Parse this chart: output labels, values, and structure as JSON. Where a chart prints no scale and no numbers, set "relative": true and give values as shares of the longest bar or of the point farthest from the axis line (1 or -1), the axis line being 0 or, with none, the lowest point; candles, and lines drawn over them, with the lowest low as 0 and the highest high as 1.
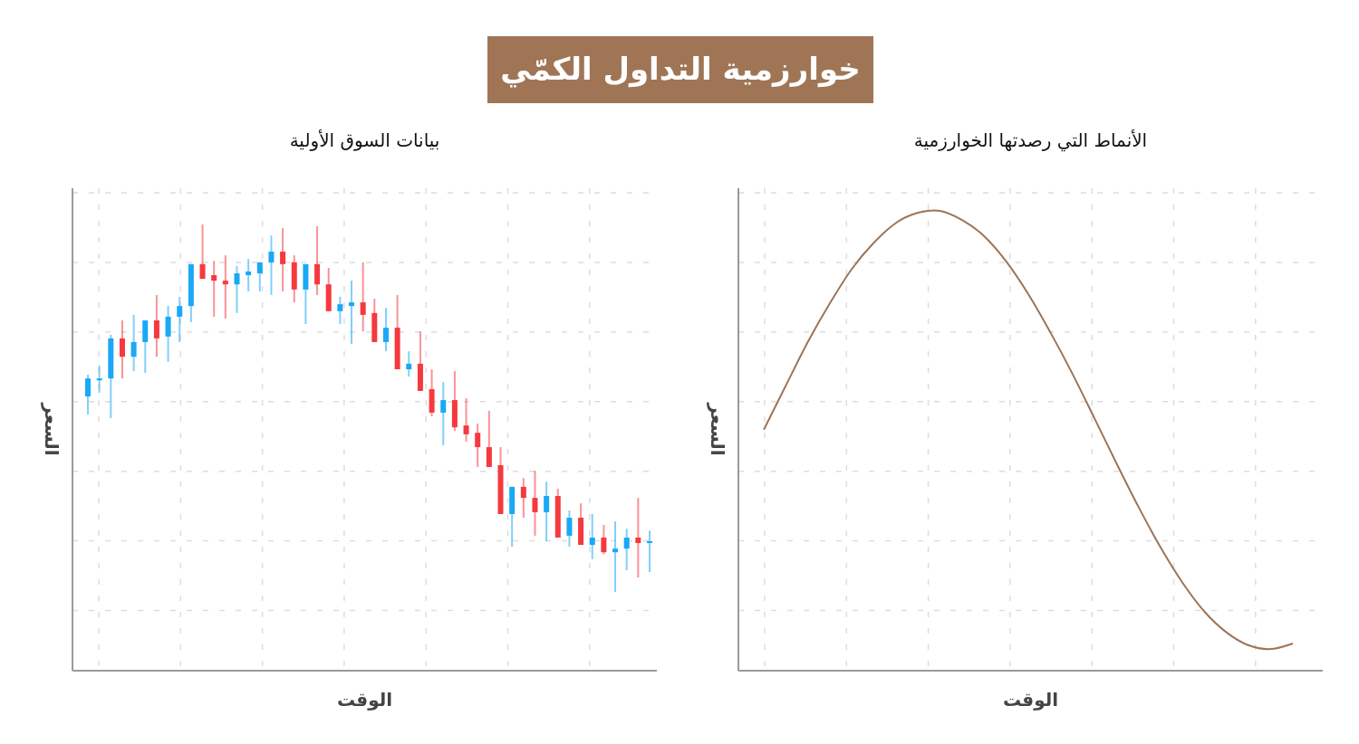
{
  "chart_data": [
    {
      "type": "other",
      "title": "خوارزمية التداول الكمّي"
    },
    {
      "type": "candlestick",
      "title": "بيانات السوق الأولية",
      "xlabel": "الوقت",
      "ylabel": "السعر",
      "relative": true,
      "grid": true,
      "categories": [
        null,
        null,
        null,
        null,
        null,
        null,
        null,
        null,
        null,
        null,
        null,
        null,
        null,
        null,
        null,
        null,
        null,
        null,
        null,
        null,
        null,
        null,
        null,
        null,
        null,
        null,
        null,
        null,
        null,
        null,
        null,
        null,
        null,
        null,
        null,
        null,
        null,
        null,
        null,
        null,
        null,
        null,
        null,
        null,
        null,
        null,
        null,
        null,
        null,
        null
      ],
      "ohlc": [
        [
          0.532,
          0.591,
          0.483,
          0.581
        ],
        [
          0.576,
          0.616,
          0.542,
          0.581
        ],
        [
          0.581,
          0.7,
          0.473,
          0.69
        ],
        [
          0.69,
          0.739,
          0.581,
          0.64
        ],
        [
          0.64,
          0.754,
          0.601,
          0.68
        ],
        [
          0.68,
          0.739,
          0.596,
          0.739
        ],
        [
          0.739,
          0.808,
          0.64,
          0.69
        ],
        [
          0.695,
          0.778,
          0.626,
          0.749
        ],
        [
          0.749,
          0.803,
          0.68,
          0.778
        ],
        [
          0.778,
          0.892,
          0.734,
          0.892
        ],
        [
          0.892,
          1.0,
          0.852,
          0.852
        ],
        [
          0.862,
          0.901,
          0.749,
          0.847
        ],
        [
          0.847,
          0.916,
          0.744,
          0.837
        ],
        [
          0.837,
          0.887,
          0.759,
          0.867
        ],
        [
          0.862,
          0.906,
          0.818,
          0.872
        ],
        [
          0.867,
          0.897,
          0.818,
          0.897
        ],
        [
          0.897,
          0.97,
          0.808,
          0.926
        ],
        [
          0.926,
          0.99,
          0.818,
          0.892
        ],
        [
          0.897,
          0.916,
          0.788,
          0.823
        ],
        [
          0.823,
          0.892,
          0.729,
          0.892
        ],
        [
          0.892,
          0.995,
          0.808,
          0.837
        ],
        [
          0.837,
          0.882,
          0.764,
          0.764
        ],
        [
          0.764,
          0.803,
          0.729,
          0.783
        ],
        [
          0.778,
          0.847,
          0.675,
          0.788
        ],
        [
          0.788,
          0.897,
          0.709,
          0.754
        ],
        [
          0.759,
          0.798,
          0.68,
          0.68
        ],
        [
          0.68,
          0.773,
          0.655,
          0.719
        ],
        [
          0.719,
          0.808,
          0.606,
          0.606
        ],
        [
          0.606,
          0.655,
          0.586,
          0.621
        ],
        [
          0.621,
          0.709,
          0.547,
          0.547
        ],
        [
          0.552,
          0.606,
          0.478,
          0.488
        ],
        [
          0.488,
          0.571,
          0.399,
          0.522
        ],
        [
          0.522,
          0.601,
          0.438,
          0.448
        ],
        [
          0.453,
          0.527,
          0.409,
          0.429
        ],
        [
          0.433,
          0.458,
          0.34,
          0.394
        ],
        [
          0.394,
          0.493,
          0.34,
          0.34
        ],
        [
          0.345,
          0.394,
          0.212,
          0.212
        ],
        [
          0.212,
          0.286,
          0.123,
          0.286
        ],
        [
          0.286,
          0.31,
          0.202,
          0.256
        ],
        [
          0.256,
          0.33,
          0.153,
          0.217
        ],
        [
          0.217,
          0.3,
          0.138,
          0.261
        ],
        [
          0.261,
          0.281,
          0.148,
          0.148
        ],
        [
          0.153,
          0.222,
          0.123,
          0.202
        ],
        [
          0.202,
          0.241,
          0.128,
          0.128
        ],
        [
          0.128,
          0.212,
          0.089,
          0.148
        ],
        [
          0.148,
          0.182,
          0.103,
          0.108
        ],
        [
          0.108,
          0.192,
          0,
          0.118
        ],
        [
          0.118,
          0.172,
          0.059,
          0.148
        ],
        [
          0.148,
          0.256,
          0.039,
          0.133
        ],
        [
          0.133,
          0.167,
          0.054,
          0.138
        ]
      ],
      "colors": [
        "#19a9f5",
        "#19a9f5",
        "#19a9f5",
        "#f5393f",
        "#19a9f5",
        "#19a9f5",
        "#f5393f",
        "#19a9f5",
        "#19a9f5",
        "#19a9f5",
        "#f5393f",
        "#f5393f",
        "#f5393f",
        "#19a9f5",
        "#19a9f5",
        "#19a9f5",
        "#19a9f5",
        "#f5393f",
        "#f5393f",
        "#19a9f5",
        "#f5393f",
        "#f5393f",
        "#19a9f5",
        "#19a9f5",
        "#f5393f",
        "#f5393f",
        "#19a9f5",
        "#f5393f",
        "#19a9f5",
        "#f5393f",
        "#f5393f",
        "#19a9f5",
        "#f5393f",
        "#f5393f",
        "#f5393f",
        "#f5393f",
        "#f5393f",
        "#19a9f5",
        "#f5393f",
        "#f5393f",
        "#19a9f5",
        "#f5393f",
        "#19a9f5",
        "#f5393f",
        "#19a9f5",
        "#f5393f",
        "#19a9f5",
        "#19a9f5",
        "#f5393f",
        "#19a9f5"
      ]
    },
    {
      "type": "line",
      "title": "الأنماط التي رصدتها الخوارزمية",
      "xlabel": "الوقت",
      "ylabel": "السعر",
      "relative": true,
      "grid": true,
      "categories": [
        null,
        null,
        null,
        null,
        null,
        null,
        null,
        null,
        null,
        null,
        null,
        null,
        null,
        null,
        null,
        null,
        null,
        null,
        null,
        null,
        null,
        null,
        null,
        null,
        null
      ],
      "series": [
        {
          "color": "#9c7457",
          "values": [
            0.524,
            0.62,
            0.715,
            0.799,
            0.874,
            0.931,
            0.974,
            0.996,
            1.0,
            0.98,
            0.945,
            0.89,
            0.819,
            0.736,
            0.646,
            0.549,
            0.451,
            0.356,
            0.268,
            0.191,
            0.128,
            0.083,
            0.055,
            0.047,
            0.059
          ]
        }
      ]
    }
  ]
}
